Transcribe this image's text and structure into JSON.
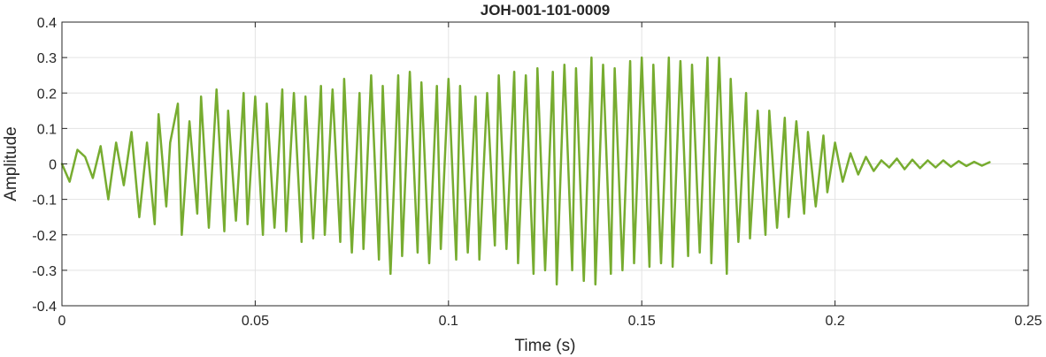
{
  "chart_data": {
    "type": "line",
    "title": "JOH-001-101-0009",
    "xlabel": "Time (s)",
    "ylabel": "Amplitude",
    "xlim": [
      0,
      0.25
    ],
    "ylim": [
      -0.4,
      0.4
    ],
    "xticks": [
      0,
      0.05,
      0.1,
      0.15,
      0.2,
      0.25
    ],
    "xtick_labels": [
      "0",
      "0.05",
      "0.1",
      "0.15",
      "0.2",
      "0.25"
    ],
    "yticks": [
      -0.4,
      -0.3,
      -0.2,
      -0.1,
      0,
      0.1,
      0.2,
      0.3,
      0.4
    ],
    "ytick_labels": [
      "-0.4",
      "-0.3",
      "-0.2",
      "-0.1",
      "0",
      "0.1",
      "0.2",
      "0.3",
      "0.4"
    ],
    "grid": true,
    "colors": {
      "line": "#77AC30",
      "grid": "#e3e3e3",
      "axes": "#262626"
    },
    "series": [
      {
        "x": [
          0,
          0.002,
          0.004,
          0.006,
          0.008,
          0.01,
          0.012,
          0.014,
          0.016,
          0.018,
          0.02,
          0.022,
          0.024,
          0.025,
          0.027,
          0.028,
          0.03,
          0.031,
          0.033,
          0.035,
          0.036,
          0.038,
          0.04,
          0.042,
          0.043,
          0.045,
          0.047,
          0.048,
          0.05,
          0.052,
          0.053,
          0.055,
          0.057,
          0.058,
          0.06,
          0.062,
          0.063,
          0.065,
          0.067,
          0.068,
          0.07,
          0.072,
          0.073,
          0.075,
          0.077,
          0.078,
          0.08,
          0.082,
          0.083,
          0.085,
          0.087,
          0.088,
          0.09,
          0.092,
          0.093,
          0.095,
          0.097,
          0.098,
          0.1,
          0.102,
          0.103,
          0.105,
          0.107,
          0.108,
          0.11,
          0.112,
          0.113,
          0.115,
          0.117,
          0.118,
          0.12,
          0.122,
          0.123,
          0.125,
          0.127,
          0.128,
          0.13,
          0.132,
          0.133,
          0.135,
          0.137,
          0.138,
          0.14,
          0.142,
          0.143,
          0.145,
          0.147,
          0.148,
          0.15,
          0.152,
          0.153,
          0.155,
          0.157,
          0.158,
          0.16,
          0.162,
          0.163,
          0.165,
          0.167,
          0.168,
          0.17,
          0.172,
          0.173,
          0.175,
          0.177,
          0.178,
          0.18,
          0.182,
          0.183,
          0.185,
          0.187,
          0.188,
          0.19,
          0.192,
          0.193,
          0.195,
          0.197,
          0.198,
          0.2,
          0.202,
          0.204,
          0.206,
          0.208,
          0.21,
          0.212,
          0.214,
          0.216,
          0.218,
          0.22,
          0.222,
          0.224,
          0.226,
          0.228,
          0.23,
          0.232,
          0.234,
          0.236,
          0.238,
          0.24
        ],
        "y": [
          0,
          -0.05,
          0.04,
          0.02,
          -0.04,
          0.05,
          -0.1,
          0.06,
          -0.06,
          0.09,
          -0.15,
          0.06,
          -0.17,
          0.14,
          -0.12,
          0.06,
          0.17,
          -0.2,
          0.12,
          -0.14,
          0.19,
          -0.18,
          0.21,
          -0.19,
          0.15,
          -0.16,
          0.2,
          -0.17,
          0.19,
          -0.2,
          0.17,
          -0.18,
          0.21,
          -0.19,
          0.2,
          -0.22,
          0.19,
          -0.21,
          0.22,
          -0.2,
          0.21,
          -0.22,
          0.24,
          -0.25,
          0.2,
          -0.24,
          0.25,
          -0.27,
          0.22,
          -0.31,
          0.25,
          -0.26,
          0.26,
          -0.25,
          0.23,
          -0.28,
          0.22,
          -0.24,
          0.24,
          -0.27,
          0.22,
          -0.25,
          0.19,
          -0.27,
          0.2,
          -0.23,
          0.25,
          -0.24,
          0.26,
          -0.28,
          0.25,
          -0.31,
          0.27,
          -0.3,
          0.26,
          -0.34,
          0.28,
          -0.3,
          0.27,
          -0.33,
          0.3,
          -0.34,
          0.28,
          -0.31,
          0.27,
          -0.3,
          0.29,
          -0.28,
          0.3,
          -0.29,
          0.28,
          -0.28,
          0.3,
          -0.29,
          0.29,
          -0.26,
          0.28,
          -0.25,
          0.3,
          -0.28,
          0.3,
          -0.31,
          0.24,
          -0.22,
          0.2,
          -0.21,
          0.15,
          -0.2,
          0.15,
          -0.18,
          0.13,
          -0.15,
          0.12,
          -0.14,
          0.09,
          -0.12,
          0.08,
          -0.08,
          0.06,
          -0.05,
          0.03,
          -0.03,
          0.02,
          -0.02,
          0.01,
          -0.01,
          0.015,
          -0.015,
          0.012,
          -0.012,
          0.01,
          -0.01,
          0.01,
          -0.008,
          0.008,
          -0.006,
          0.006,
          -0.005,
          0.005
        ]
      }
    ]
  }
}
